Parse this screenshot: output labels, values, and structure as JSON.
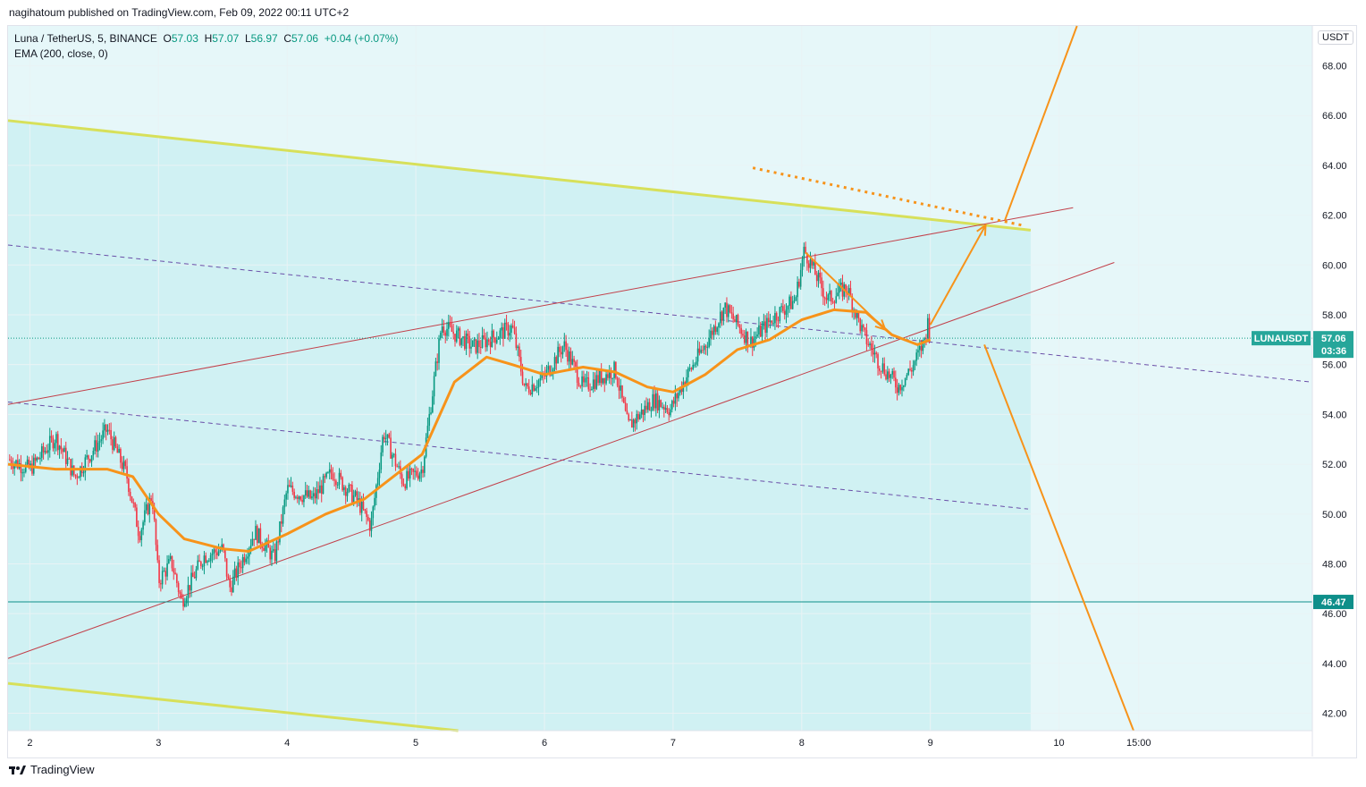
{
  "header": {
    "publisher": "nagihatoum published on TradingView.com, Feb 09, 2022 00:11 UTC+2"
  },
  "legend": {
    "symbol": "Luna / TetherUS, 5, BINANCE",
    "o_key": "O",
    "o_val": "57.03",
    "h_key": "H",
    "h_val": "57.07",
    "l_key": "L",
    "l_val": "56.97",
    "c_key": "C",
    "c_val": "57.06",
    "change": "+0.04 (+0.07%)",
    "ema": "EMA (200, close, 0)"
  },
  "currency_button": "USDT",
  "footer": {
    "logo_icon": "tradingview-logo-icon",
    "brand": "TradingView"
  },
  "colors": {
    "up": "#089981",
    "down": "#f23645",
    "ema": "#f7931a",
    "channel_fill": "#d0f1f3",
    "right_fill": "#e6f7f9",
    "yellow": "#d7e05a",
    "trend": "#c2404a",
    "dashed": "#6a4fa8"
  },
  "chart_data": {
    "type": "candlestick",
    "title": "Luna / TetherUS, 5, BINANCE",
    "ylabel": "USDT",
    "ylim": [
      41.3,
      69.6
    ],
    "x_range": [
      1.83,
      11.97
    ],
    "y_ticks": [
      "42.00",
      "44.00",
      "46.00",
      "48.00",
      "50.00",
      "52.00",
      "54.00",
      "56.00",
      "58.00",
      "60.00",
      "62.00",
      "64.00",
      "66.00",
      "68.00"
    ],
    "x_ticks": [
      {
        "label": "2",
        "x": 2
      },
      {
        "label": "3",
        "x": 3
      },
      {
        "label": "4",
        "x": 4
      },
      {
        "label": "5",
        "x": 5
      },
      {
        "label": "6",
        "x": 6
      },
      {
        "label": "7",
        "x": 7
      },
      {
        "label": "8",
        "x": 8
      },
      {
        "label": "9",
        "x": 9
      },
      {
        "label": "10",
        "x": 10
      },
      {
        "label": "15:00",
        "x": 10.62
      }
    ],
    "price_path": [
      [
        1.83,
        52.2
      ],
      [
        2.0,
        51.8
      ],
      [
        2.2,
        53.1
      ],
      [
        2.35,
        51.5
      ],
      [
        2.6,
        53.4
      ],
      [
        2.75,
        51.6
      ],
      [
        2.85,
        49.2
      ],
      [
        2.95,
        50.8
      ],
      [
        3.0,
        47.3
      ],
      [
        3.1,
        48.1
      ],
      [
        3.18,
        46.5
      ],
      [
        3.35,
        48.3
      ],
      [
        3.5,
        48.6
      ],
      [
        3.55,
        47.0
      ],
      [
        3.75,
        49.3
      ],
      [
        3.9,
        48.2
      ],
      [
        4.0,
        51.0
      ],
      [
        4.2,
        50.6
      ],
      [
        4.35,
        51.7
      ],
      [
        4.55,
        50.5
      ],
      [
        4.65,
        49.5
      ],
      [
        4.75,
        53.3
      ],
      [
        4.9,
        51.3
      ],
      [
        5.05,
        51.8
      ],
      [
        5.2,
        57.6
      ],
      [
        5.45,
        56.7
      ],
      [
        5.75,
        57.5
      ],
      [
        5.85,
        55.0
      ],
      [
        6.0,
        55.5
      ],
      [
        6.15,
        56.8
      ],
      [
        6.3,
        55.1
      ],
      [
        6.55,
        55.8
      ],
      [
        6.65,
        53.5
      ],
      [
        6.85,
        54.6
      ],
      [
        6.98,
        54.2
      ],
      [
        7.1,
        55.5
      ],
      [
        7.25,
        56.8
      ],
      [
        7.4,
        58.3
      ],
      [
        7.6,
        56.9
      ],
      [
        7.8,
        58.0
      ],
      [
        7.95,
        58.6
      ],
      [
        8.02,
        60.6
      ],
      [
        8.2,
        58.6
      ],
      [
        8.35,
        59.1
      ],
      [
        8.48,
        57.2
      ],
      [
        8.6,
        56.1
      ],
      [
        8.75,
        55.1
      ],
      [
        8.86,
        55.9
      ],
      [
        8.95,
        56.9
      ],
      [
        8.98,
        57.7
      ],
      [
        9.0,
        57.06
      ]
    ],
    "ema_path": [
      [
        1.83,
        52.0
      ],
      [
        2.2,
        51.8
      ],
      [
        2.6,
        51.8
      ],
      [
        2.8,
        51.5
      ],
      [
        3.0,
        50.0
      ],
      [
        3.2,
        49.0
      ],
      [
        3.5,
        48.6
      ],
      [
        3.7,
        48.5
      ],
      [
        4.0,
        49.2
      ],
      [
        4.3,
        50.0
      ],
      [
        4.6,
        50.6
      ],
      [
        4.85,
        51.6
      ],
      [
        5.05,
        52.4
      ],
      [
        5.3,
        55.3
      ],
      [
        5.55,
        56.3
      ],
      [
        5.75,
        56.0
      ],
      [
        6.0,
        55.6
      ],
      [
        6.3,
        55.9
      ],
      [
        6.55,
        55.7
      ],
      [
        6.8,
        55.1
      ],
      [
        7.0,
        54.9
      ],
      [
        7.25,
        55.6
      ],
      [
        7.5,
        56.6
      ],
      [
        7.75,
        57.0
      ],
      [
        8.0,
        57.8
      ],
      [
        8.25,
        58.2
      ],
      [
        8.5,
        58.1
      ],
      [
        8.7,
        57.2
      ],
      [
        8.9,
        56.8
      ],
      [
        9.0,
        57.0
      ]
    ],
    "current_price": {
      "label": "LUNAUSDT",
      "value": "57.06",
      "countdown": "03:36"
    },
    "support_level": {
      "value": "46.47"
    },
    "shaded_region": {
      "x_end": 9.78
    },
    "drawings": {
      "yellow_upper": {
        "from": [
          1.83,
          65.8
        ],
        "to": [
          9.78,
          61.4
        ]
      },
      "yellow_lower": {
        "from": [
          1.83,
          43.2
        ],
        "to": [
          5.33,
          41.3
        ]
      },
      "trend_upper": {
        "from": [
          1.83,
          54.4
        ],
        "to": [
          10.11,
          62.3
        ]
      },
      "trend_lower": {
        "from": [
          1.83,
          44.2
        ],
        "to": [
          10.43,
          60.1
        ]
      },
      "dashed_upper": {
        "from": [
          1.83,
          60.8
        ],
        "to": [
          11.96,
          55.3
        ]
      },
      "dashed_lower": {
        "from": [
          1.83,
          54.5
        ],
        "to": [
          9.76,
          50.2
        ]
      },
      "dotted_resistance": {
        "from": [
          7.62,
          63.9
        ],
        "to": [
          9.71,
          61.6
        ]
      },
      "projection_up_1": {
        "from": [
          9.0,
          57.6
        ],
        "to": [
          9.43,
          61.6
        ]
      },
      "projection_up_2": {
        "from": [
          9.58,
          61.8
        ],
        "to": [
          10.14,
          69.6
        ]
      },
      "projection_down": {
        "from": [
          9.42,
          56.8
        ],
        "to": [
          10.58,
          41.3
        ]
      },
      "down_arrow": {
        "from": [
          8.03,
          60.5
        ],
        "to": [
          8.65,
          57.4
        ]
      }
    }
  }
}
